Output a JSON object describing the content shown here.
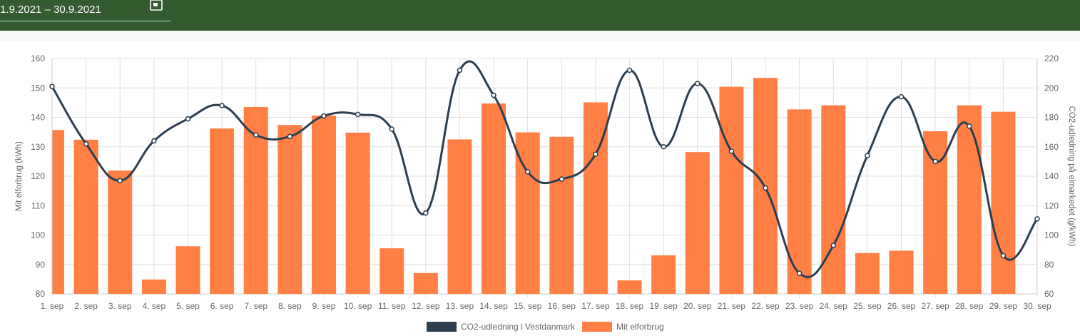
{
  "header": {
    "date_range": "1.9.2021 – 30.9.2021",
    "calendar_icon": "calendar-icon",
    "background": "#345a30"
  },
  "chart_data": {
    "type": "bar",
    "categories": [
      "1. sep",
      "2. sep",
      "3. sep",
      "4. sep",
      "5. sep",
      "6. sep",
      "7. sep",
      "8. sep",
      "9. sep",
      "10. sep",
      "11. sep",
      "12. sep",
      "13. sep",
      "14. sep",
      "15. sep",
      "16. sep",
      "17. sep",
      "18. sep",
      "19. sep",
      "20. sep",
      "21. sep",
      "22. sep",
      "23. sep",
      "24. sep",
      "25. sep",
      "26. sep",
      "27. sep",
      "28. sep",
      "29. sep",
      "30. sep"
    ],
    "series": [
      {
        "name": "Mit elforbrug",
        "type": "bar",
        "axis": "left",
        "color": "#ff7f45",
        "values": [
          135.7,
          132.4,
          121.9,
          84.9,
          96.2,
          136.2,
          143.5,
          137.4,
          140.6,
          134.8,
          95.5,
          87.1,
          132.5,
          144.7,
          134.9,
          133.4,
          145.1,
          84.6,
          93.1,
          128.2,
          150.4,
          153.4,
          142.7,
          144.1,
          93.9,
          94.7,
          135.3,
          144.1,
          141.9,
          null
        ]
      },
      {
        "name": "CO2-udledning i Vestdanmark",
        "type": "line",
        "axis": "right",
        "color": "#2c3e50",
        "values": [
          201,
          162,
          137,
          164,
          179,
          188,
          168,
          167,
          181,
          182,
          172,
          115,
          212,
          195,
          143,
          138,
          155,
          212,
          160,
          203,
          157,
          132,
          74,
          93,
          154,
          194,
          150,
          174,
          86,
          111
        ]
      }
    ],
    "y_left": {
      "label": "Mit elforbrug (kWh)",
      "min": 80,
      "max": 160,
      "ticks": [
        80,
        90,
        100,
        110,
        120,
        130,
        140,
        150,
        160
      ]
    },
    "y_right": {
      "label": "CO2-udledning på elmarkedet (g/kWh)",
      "min": 60,
      "max": 220,
      "ticks": [
        60,
        80,
        100,
        120,
        140,
        160,
        180,
        200,
        220
      ]
    },
    "grid": true,
    "legend": "bottom",
    "legend_items": [
      {
        "label": "CO2-udledning i Vestdanmark",
        "color": "#2c3e50"
      },
      {
        "label": "Mit elforbrug",
        "color": "#ff7f45"
      }
    ]
  }
}
